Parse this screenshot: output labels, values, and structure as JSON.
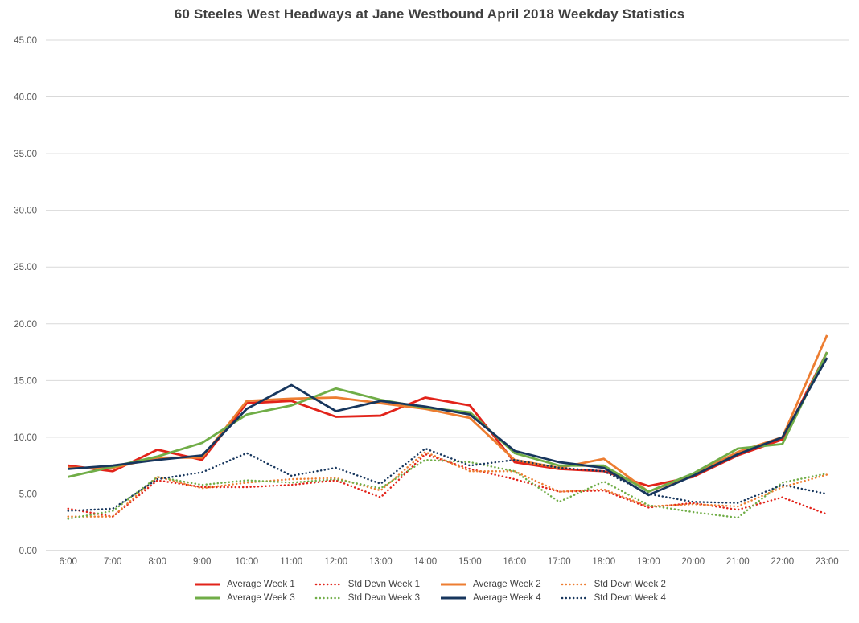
{
  "chart_data": {
    "type": "line",
    "title": "60 Steeles West Headways at Jane Westbound April 2018 Weekday Statistics",
    "xlabel": "",
    "ylabel": "",
    "ylim": [
      0,
      45
    ],
    "ytick_step": 5,
    "ytick_labels": [
      "45.00",
      "40.00",
      "35.00",
      "30.00",
      "25.00",
      "20.00",
      "15.00",
      "10.00",
      "5.00",
      "0.00"
    ],
    "grid": true,
    "legend_position": "bottom",
    "categories": [
      "6:00",
      "7:00",
      "8:00",
      "9:00",
      "10:00",
      "11:00",
      "12:00",
      "13:00",
      "14:00",
      "15:00",
      "16:00",
      "17:00",
      "18:00",
      "19:00",
      "20:00",
      "21:00",
      "22:00",
      "23:00"
    ],
    "series": [
      {
        "name": "Average Week 1",
        "color": "#e2231a",
        "style": "solid",
        "values": [
          7.5,
          7.0,
          8.9,
          8.0,
          13.0,
          13.2,
          11.8,
          11.9,
          13.5,
          12.8,
          7.8,
          7.2,
          7.0,
          5.7,
          6.5,
          8.4,
          9.8,
          17.5
        ]
      },
      {
        "name": "Std Devn Week 1",
        "color": "#e2231a",
        "style": "dotted",
        "values": [
          3.7,
          3.0,
          6.2,
          5.6,
          5.6,
          5.8,
          6.2,
          4.7,
          8.5,
          7.2,
          6.3,
          5.2,
          5.3,
          3.8,
          4.2,
          3.6,
          4.7,
          3.2
        ]
      },
      {
        "name": "Average Week 2",
        "color": "#ed7d31",
        "style": "solid",
        "values": [
          7.3,
          7.3,
          8.2,
          8.2,
          13.2,
          13.4,
          13.5,
          13.0,
          12.5,
          11.7,
          8.0,
          7.3,
          8.1,
          5.2,
          6.7,
          8.7,
          10.0,
          19.0
        ]
      },
      {
        "name": "Std Devn Week 2",
        "color": "#ed7d31",
        "style": "dotted",
        "values": [
          3.0,
          3.0,
          6.5,
          5.5,
          6.0,
          6.3,
          6.4,
          5.3,
          8.7,
          7.0,
          7.0,
          5.2,
          5.4,
          3.9,
          4.1,
          3.9,
          5.6,
          6.7
        ]
      },
      {
        "name": "Average Week 3",
        "color": "#70ad47",
        "style": "solid",
        "values": [
          6.5,
          7.4,
          8.3,
          9.5,
          12.0,
          12.8,
          14.3,
          13.3,
          12.6,
          12.2,
          8.6,
          7.5,
          7.5,
          5.2,
          6.8,
          9.0,
          9.4,
          17.5
        ]
      },
      {
        "name": "Std Devn Week 3",
        "color": "#70ad47",
        "style": "dotted",
        "values": [
          2.8,
          3.5,
          6.5,
          5.8,
          6.2,
          6.0,
          6.3,
          5.5,
          8.0,
          7.8,
          7.0,
          4.3,
          6.1,
          4.0,
          3.4,
          2.9,
          6.0,
          6.8
        ]
      },
      {
        "name": "Average Week 4",
        "color": "#17365d",
        "style": "solid",
        "values": [
          7.2,
          7.5,
          8.0,
          8.4,
          12.5,
          14.6,
          12.3,
          13.2,
          12.7,
          12.0,
          8.8,
          7.8,
          7.3,
          4.9,
          6.6,
          8.5,
          10.0,
          17.0
        ]
      },
      {
        "name": "Std Devn Week 4",
        "color": "#17365d",
        "style": "dotted",
        "values": [
          3.5,
          3.7,
          6.3,
          6.9,
          8.6,
          6.6,
          7.3,
          5.9,
          9.0,
          7.5,
          8.0,
          7.3,
          7.0,
          5.0,
          4.3,
          4.2,
          5.8,
          5.0
        ]
      }
    ],
    "legend_rows": [
      [
        "Average Week 1",
        "Std Devn Week 1",
        "Average Week 2",
        "Std Devn Week 2"
      ],
      [
        "Average Week 3",
        "Std Devn Week 3",
        "Average Week 4",
        "Std Devn Week 4"
      ]
    ]
  }
}
